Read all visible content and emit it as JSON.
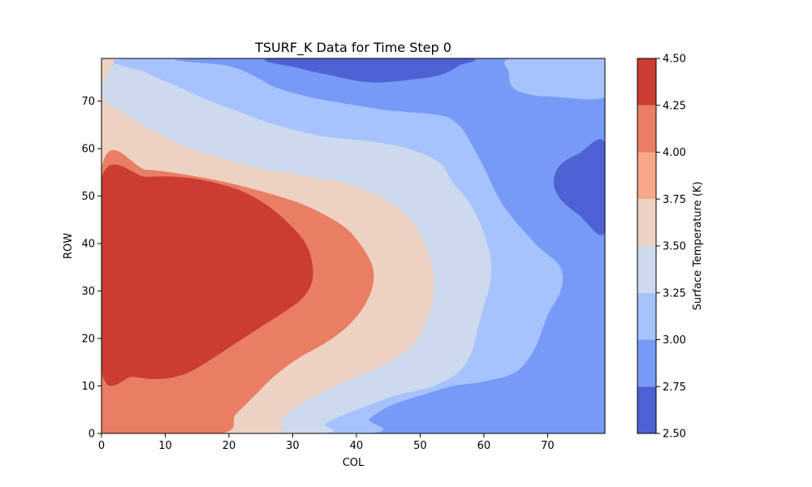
{
  "chart_data": {
    "type": "contour",
    "title": "TSURF_K Data for Time Step 0",
    "xlabel": "COL",
    "ylabel": "ROW",
    "xlim": [
      0,
      79
    ],
    "ylim": [
      0,
      79
    ],
    "x_ticks": [
      0,
      10,
      20,
      30,
      40,
      50,
      60,
      70
    ],
    "y_ticks": [
      0,
      10,
      20,
      30,
      40,
      50,
      60,
      70
    ],
    "colorbar": {
      "label": "Surface Temperature (K)",
      "range": [
        2.5,
        4.5
      ],
      "levels": [
        2.5,
        2.75,
        3.0,
        3.25,
        3.5,
        3.75,
        4.0,
        4.25,
        4.5
      ],
      "tick_labels": [
        "2.50",
        "2.75",
        "3.00",
        "3.25",
        "3.50",
        "3.75",
        "4.00",
        "4.25",
        "4.50"
      ],
      "colors": [
        "#4e62d6",
        "#779af6",
        "#a6c3fe",
        "#cdd9ec",
        "#edd1c2",
        "#f6a78a",
        "#e97e64",
        "#cb3c33"
      ],
      "colormap": "coolwarm"
    },
    "bands": [
      {
        "range": [
          2.5,
          2.75
        ],
        "color": "#4e62d6"
      },
      {
        "range": [
          2.75,
          3.0
        ],
        "color": "#779af6"
      },
      {
        "range": [
          3.0,
          3.25
        ],
        "color": "#a6c3fe"
      },
      {
        "range": [
          3.25,
          3.5
        ],
        "color": "#cdd9ec"
      },
      {
        "range": [
          3.5,
          3.75
        ],
        "color": "#edd1c2"
      },
      {
        "range": [
          3.75,
          4.0
        ],
        "color": "#f6a78a"
      },
      {
        "range": [
          4.0,
          4.25
        ],
        "color": "#e97e64"
      },
      {
        "range": [
          4.25,
          4.5
        ],
        "color": "#cb3c33"
      }
    ],
    "contours": [
      {
        "name": "level-2.75-left",
        "color": "#779af6",
        "points": [
          [
            79,
            79
          ],
          [
            41.5,
            79
          ],
          [
            41.5,
            76
          ],
          [
            35,
            74.5
          ],
          [
            31,
            73
          ],
          [
            25,
            71
          ],
          [
            18,
            69
          ],
          [
            14,
            65.5
          ],
          [
            10,
            62.5
          ],
          [
            5.5,
            59
          ],
          [
            0,
            55
          ],
          [
            0,
            0
          ],
          [
            56.5,
            0
          ],
          [
            56.5,
            3
          ],
          [
            60,
            6
          ],
          [
            65,
            8
          ],
          [
            69,
            10
          ],
          [
            76,
            12
          ],
          [
            79,
            12
          ],
          [
            79,
            79
          ]
        ]
      },
      {
        "name": "level-3.0-left",
        "color": "#a6c3fe",
        "points": [
          [
            79,
            79
          ],
          [
            0,
            79
          ],
          [
            0,
            0
          ],
          [
            41,
            0
          ],
          [
            42,
            3
          ],
          [
            45.5,
            6
          ],
          [
            50,
            8
          ],
          [
            55,
            10
          ],
          [
            60,
            11
          ],
          [
            65,
            13
          ],
          [
            68,
            18
          ],
          [
            70,
            25
          ],
          [
            72,
            30
          ],
          [
            72,
            35
          ],
          [
            68,
            40
          ],
          [
            63,
            48
          ],
          [
            60,
            56
          ],
          [
            58,
            61
          ],
          [
            56,
            65
          ],
          [
            53,
            67
          ],
          [
            45,
            68
          ],
          [
            38,
            69.5
          ],
          [
            32,
            71
          ],
          [
            27,
            73
          ],
          [
            25,
            74.5
          ],
          [
            22,
            76.5
          ],
          [
            19.5,
            77.5
          ],
          [
            15,
            79
          ]
        ]
      },
      {
        "name": "level-3.25",
        "color": "#cdd9ec",
        "points": [
          [
            52,
            79
          ],
          [
            0,
            79
          ],
          [
            0,
            0
          ],
          [
            33.5,
            0
          ],
          [
            35,
            2
          ],
          [
            38,
            4
          ],
          [
            42,
            6
          ],
          [
            46,
            8
          ],
          [
            52,
            10
          ],
          [
            56,
            13
          ],
          [
            58,
            17
          ],
          [
            59,
            22
          ],
          [
            60,
            27
          ],
          [
            61,
            32
          ],
          [
            61,
            37
          ],
          [
            60,
            42
          ],
          [
            58,
            48
          ],
          [
            55,
            53
          ],
          [
            53,
            57
          ],
          [
            48,
            60
          ],
          [
            42,
            61.5
          ],
          [
            35,
            62.5
          ],
          [
            30,
            64
          ],
          [
            26,
            65.5
          ],
          [
            22,
            67.5
          ],
          [
            17,
            70
          ],
          [
            12,
            73
          ],
          [
            7,
            76
          ],
          [
            4.5,
            79
          ]
        ]
      },
      {
        "name": "level-3.5",
        "color": "#edd1c2",
        "points": [
          [
            2,
            79
          ],
          [
            0,
            79
          ],
          [
            0,
            0
          ],
          [
            26,
            0
          ],
          [
            28,
            3
          ],
          [
            31,
            6
          ],
          [
            35,
            9
          ],
          [
            40,
            12
          ],
          [
            45,
            15
          ],
          [
            49,
            19
          ],
          [
            51,
            24
          ],
          [
            52,
            29
          ],
          [
            52,
            34
          ],
          [
            51,
            39
          ],
          [
            49,
            44
          ],
          [
            46,
            48
          ],
          [
            40,
            52
          ],
          [
            33,
            54
          ],
          [
            26,
            55.5
          ],
          [
            20,
            57.5
          ],
          [
            14,
            60
          ],
          [
            9,
            63
          ],
          [
            4,
            67
          ],
          [
            0,
            71.5
          ]
        ]
      },
      {
        "name": "level-3.75",
        "color": "#f6a78a",
        "points": [
          [
            0,
            63.5
          ],
          [
            0,
            0
          ],
          [
            18.5,
            0
          ],
          [
            21,
            4
          ],
          [
            24,
            8
          ],
          [
            27,
            12
          ],
          [
            31,
            16
          ],
          [
            35,
            19
          ],
          [
            38.5,
            22.5
          ],
          [
            41,
            26.5
          ],
          [
            42.5,
            31
          ],
          [
            42.5,
            35
          ],
          [
            41,
            39
          ],
          [
            38.5,
            43
          ],
          [
            35,
            46
          ],
          [
            31,
            48.5
          ],
          [
            25,
            51
          ],
          [
            19,
            53
          ],
          [
            13,
            54.5
          ],
          [
            7,
            55.5
          ],
          [
            0,
            55.5
          ]
        ]
      },
      {
        "name": "level-4.0",
        "color": "#e97e64",
        "points": [
          [
            0,
            55.5
          ],
          [
            0,
            0
          ],
          [
            18.5,
            0
          ],
          [
            21,
            4
          ],
          [
            24,
            8
          ],
          [
            27,
            12
          ],
          [
            31,
            16
          ],
          [
            35,
            19
          ],
          [
            38.5,
            22.5
          ],
          [
            41,
            26.5
          ],
          [
            42.5,
            31
          ],
          [
            42.5,
            35
          ],
          [
            41,
            39
          ],
          [
            38.5,
            43
          ],
          [
            35,
            46
          ],
          [
            31,
            48.5
          ],
          [
            25,
            51
          ],
          [
            19,
            53
          ],
          [
            13,
            54.5
          ],
          [
            7,
            55.5
          ]
        ]
      },
      {
        "name": "level-4.25",
        "color": "#cb3c33",
        "points": [
          [
            0,
            53.5
          ],
          [
            7,
            54
          ],
          [
            12,
            54
          ],
          [
            17,
            53
          ],
          [
            22,
            51
          ],
          [
            26,
            48
          ],
          [
            29.5,
            44
          ],
          [
            32,
            40
          ],
          [
            33,
            36
          ],
          [
            33,
            32
          ],
          [
            31.5,
            28.5
          ],
          [
            28.5,
            25.5
          ],
          [
            25,
            22.5
          ],
          [
            21,
            19
          ],
          [
            17,
            15.5
          ],
          [
            13,
            12.5
          ],
          [
            9,
            11.5
          ],
          [
            5,
            12
          ],
          [
            0,
            13.5
          ]
        ]
      },
      {
        "name": "low-top",
        "color": "#4e62d6",
        "points": [
          [
            27,
            79
          ],
          [
            31,
            77
          ],
          [
            36,
            75.5
          ],
          [
            42,
            74
          ],
          [
            48,
            74.5
          ],
          [
            53,
            75.5
          ],
          [
            56,
            77.5
          ],
          [
            56.5,
            79
          ]
        ]
      },
      {
        "name": "low-right",
        "color": "#4e62d6",
        "points": [
          [
            79,
            61
          ],
          [
            75,
            59
          ],
          [
            72,
            56.5
          ],
          [
            71,
            53
          ],
          [
            72,
            49.5
          ],
          [
            75,
            46
          ],
          [
            79,
            42.5
          ]
        ]
      },
      {
        "name": "high-top-right",
        "color": "#a6c3fe",
        "points": [
          [
            64.5,
            79
          ],
          [
            64,
            76
          ],
          [
            64.5,
            73
          ],
          [
            67,
            71.5
          ],
          [
            71,
            71
          ],
          [
            79,
            71
          ],
          [
            79,
            79
          ]
        ]
      }
    ]
  }
}
